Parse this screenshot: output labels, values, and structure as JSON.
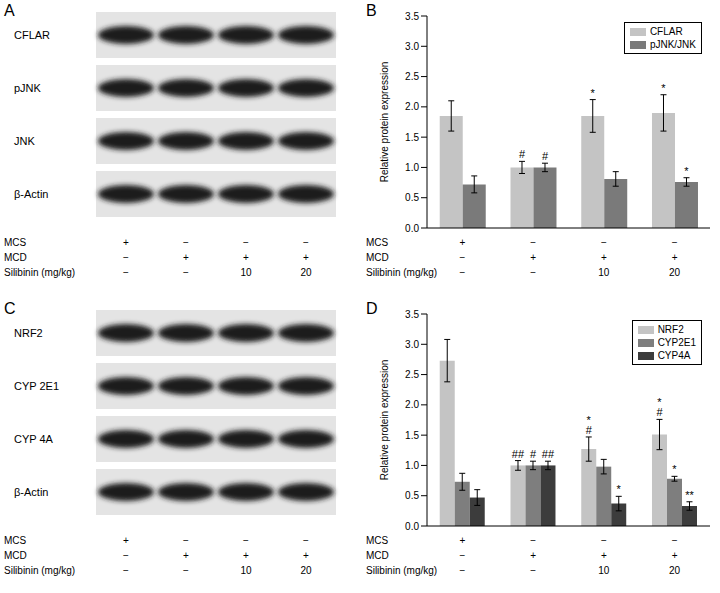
{
  "blots": [
    {
      "panel_label": "A",
      "rows": [
        "CFLAR",
        "pJNK",
        "JNK",
        "β-Actin"
      ],
      "conditions": [
        {
          "label": "MCS",
          "values": [
            "+",
            "−",
            "−",
            "−"
          ]
        },
        {
          "label": "MCD",
          "values": [
            "−",
            "+",
            "+",
            "+"
          ]
        },
        {
          "label": "Silibinin (mg/kg)",
          "values": [
            "−",
            "−",
            "10",
            "20"
          ]
        }
      ]
    },
    {
      "panel_label": "C",
      "rows": [
        "NRF2",
        "CYP 2E1",
        "CYP 4A",
        "β-Actin"
      ],
      "conditions": [
        {
          "label": "MCS",
          "values": [
            "+",
            "−",
            "−",
            "−"
          ]
        },
        {
          "label": "MCD",
          "values": [
            "−",
            "+",
            "+",
            "+"
          ]
        },
        {
          "label": "Silibinin (mg/kg)",
          "values": [
            "−",
            "−",
            "10",
            "20"
          ]
        }
      ]
    }
  ],
  "chart_data": [
    {
      "type": "bar",
      "panel_label": "B",
      "y_label": "Relative protein expression",
      "categories": [
        null,
        null,
        null,
        null
      ],
      "conditions": [
        {
          "label": "MCS",
          "values": [
            "+",
            "−",
            "−",
            "−"
          ]
        },
        {
          "label": "MCD",
          "values": [
            "−",
            "+",
            "+",
            "+"
          ]
        },
        {
          "label": "Silibinin (mg/kg)",
          "values": [
            "−",
            "−",
            "10",
            "20"
          ]
        }
      ],
      "ylim": [
        0,
        3.5
      ],
      "yticks": [
        {
          "value": 0,
          "label": "0.0"
        },
        0.5,
        {
          "value": 1,
          "label": "1.0"
        },
        1.5,
        {
          "value": 2,
          "label": "2.0"
        },
        2.5,
        {
          "value": 3,
          "label": "3.0"
        },
        3.5
      ],
      "legend": "upper right",
      "series": [
        {
          "name": "CFLAR",
          "color": "#c4c4c4",
          "values": [
            1.85,
            1.0,
            1.85,
            1.9
          ],
          "errors": [
            0.25,
            0.1,
            0.27,
            0.3
          ],
          "significance": [
            null,
            "#",
            "*",
            "*"
          ]
        },
        {
          "name": "pJNK/JNK",
          "color": "#7a7a7a",
          "values": [
            0.72,
            1.0,
            0.81,
            0.76
          ],
          "errors": [
            0.14,
            0.07,
            0.12,
            0.07
          ],
          "significance": [
            null,
            "#",
            null,
            "*"
          ]
        }
      ]
    },
    {
      "type": "bar",
      "panel_label": "D",
      "y_label": "Relative protein expression",
      "categories": [
        null,
        null,
        null,
        null
      ],
      "conditions": [
        {
          "label": "MCS",
          "values": [
            "+",
            "−",
            "−",
            "−"
          ]
        },
        {
          "label": "MCD",
          "values": [
            "−",
            "+",
            "+",
            "+"
          ]
        },
        {
          "label": "Silibinin (mg/kg)",
          "values": [
            "−",
            "−",
            "10",
            "20"
          ]
        }
      ],
      "ylim": [
        0,
        3.5
      ],
      "yticks": [
        {
          "value": 0,
          "label": "0.0"
        },
        0.5,
        {
          "value": 1,
          "label": "1.0"
        },
        1.5,
        {
          "value": 2,
          "label": "2.0"
        },
        2.5,
        {
          "value": 3,
          "label": "3.0"
        },
        3.5
      ],
      "legend": "upper right",
      "series": [
        {
          "name": "NRF2",
          "color": "#c4c4c4",
          "values": [
            2.73,
            1.0,
            1.27,
            1.51
          ],
          "errors": [
            0.35,
            0.08,
            0.2,
            0.25
          ],
          "significance": [
            null,
            "##",
            [
              "*",
              "#"
            ],
            [
              "*",
              "#"
            ]
          ]
        },
        {
          "name": "CYP2E1",
          "color": "#7e7e7e",
          "values": [
            0.73,
            1.0,
            0.98,
            0.78
          ],
          "errors": [
            0.14,
            0.07,
            0.12,
            0.04
          ],
          "significance": [
            null,
            "#",
            null,
            "*"
          ]
        },
        {
          "name": "CYP4A",
          "color": "#3c3c3c",
          "values": [
            0.47,
            1.0,
            0.37,
            0.33
          ],
          "errors": [
            0.13,
            0.07,
            0.12,
            0.07
          ],
          "significance": [
            null,
            "##",
            "*",
            "**"
          ]
        }
      ]
    }
  ]
}
